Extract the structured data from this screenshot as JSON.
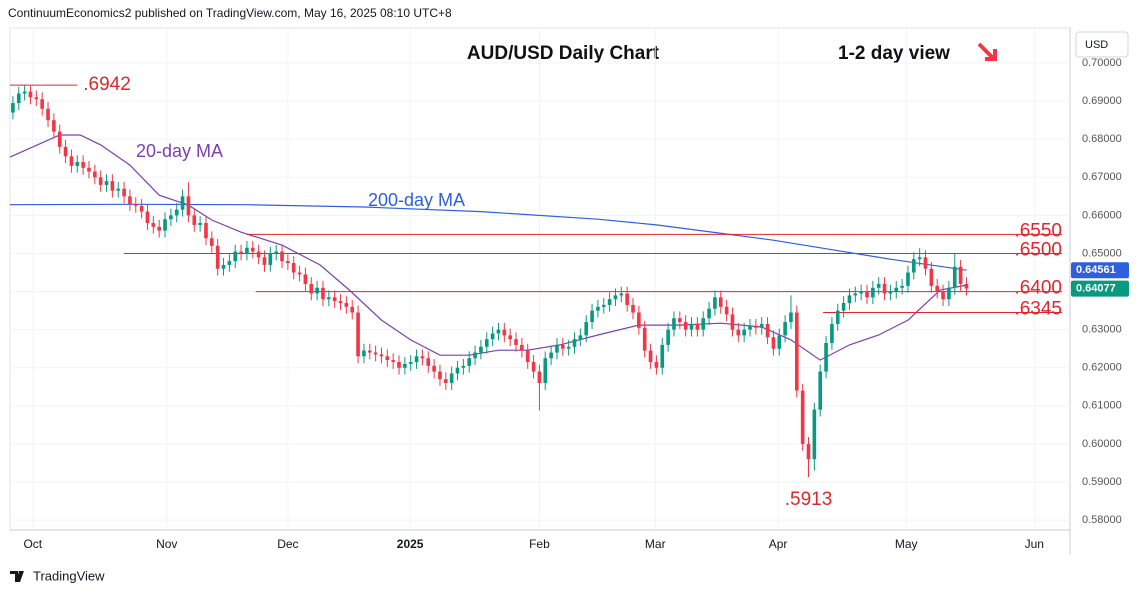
{
  "header": "ContinuumEconomics2 published on TradingView.com, May 16, 2025 08:10 UTC+8",
  "footer": "TradingView",
  "chart_data": {
    "type": "candlestick",
    "title": "AUD/USD Daily Chart",
    "subtitle": "1-2 day view",
    "currency": "USD",
    "up_color": "#089981",
    "down_color": "#f23645",
    "xlim": [
      -0.5,
      180.7
    ],
    "xticks": [
      {
        "value": 3.4,
        "label": "Oct"
      },
      {
        "value": 26.3,
        "label": "Nov"
      },
      {
        "value": 47,
        "label": "Dec"
      },
      {
        "value": 67.9,
        "label": "2025"
      },
      {
        "value": 90,
        "label": "Feb"
      },
      {
        "value": 109.8,
        "label": "Mar"
      },
      {
        "value": 130.8,
        "label": "Apr"
      },
      {
        "value": 152.7,
        "label": "May"
      },
      {
        "value": 174.6,
        "label": "Jun"
      }
    ],
    "ylim": [
      0.5774,
      0.7092
    ],
    "yticks": [
      {
        "value": 0.7,
        "label": "0.70000"
      },
      {
        "value": 0.69,
        "label": "0.69000"
      },
      {
        "value": 0.68,
        "label": "0.68000"
      },
      {
        "value": 0.67,
        "label": "0.67000"
      },
      {
        "value": 0.66,
        "label": "0.66000"
      },
      {
        "value": 0.65,
        "label": "0.65000"
      },
      {
        "value": 0.64,
        "label": "0.64000"
      },
      {
        "value": 0.63,
        "label": "0.63000"
      },
      {
        "value": 0.62,
        "label": "0.62000"
      },
      {
        "value": 0.61,
        "label": "0.61000"
      },
      {
        "value": 0.6,
        "label": "0.60000"
      },
      {
        "value": 0.59,
        "label": "0.59000"
      },
      {
        "value": 0.58,
        "label": "0.58000"
      }
    ],
    "open": [
      0.687,
      0.6895,
      0.692,
      0.6925,
      0.691,
      0.6905,
      0.688,
      0.685,
      0.682,
      0.678,
      0.6755,
      0.673,
      0.674,
      0.6725,
      0.6715,
      0.67,
      0.668,
      0.669,
      0.6665,
      0.667,
      0.665,
      0.663,
      0.6625,
      0.661,
      0.658,
      0.657,
      0.656,
      0.659,
      0.66,
      0.6615,
      0.665,
      0.66,
      0.6575,
      0.658,
      0.654,
      0.652,
      0.646,
      0.647,
      0.648,
      0.6505,
      0.65,
      0.6515,
      0.6505,
      0.649,
      0.647,
      0.65,
      0.6505,
      0.648,
      0.6475,
      0.645,
      0.6445,
      0.642,
      0.6395,
      0.641,
      0.638,
      0.6385,
      0.6375,
      0.637,
      0.636,
      0.6345,
      0.623,
      0.6245,
      0.624,
      0.6235,
      0.623,
      0.622,
      0.6215,
      0.62,
      0.621,
      0.6215,
      0.623,
      0.6225,
      0.6205,
      0.619,
      0.617,
      0.616,
      0.6185,
      0.62,
      0.6205,
      0.6225,
      0.624,
      0.6255,
      0.6275,
      0.629,
      0.63,
      0.6285,
      0.6275,
      0.626,
      0.6245,
      0.6215,
      0.619,
      0.616,
      0.6225,
      0.624,
      0.626,
      0.625,
      0.6255,
      0.6275,
      0.6285,
      0.632,
      0.635,
      0.636,
      0.6365,
      0.638,
      0.639,
      0.6395,
      0.6365,
      0.6345,
      0.6305,
      0.6245,
      0.6215,
      0.62,
      0.626,
      0.63,
      0.633,
      0.632,
      0.63,
      0.6315,
      0.63,
      0.633,
      0.6355,
      0.6385,
      0.636,
      0.634,
      0.63,
      0.6285,
      0.63,
      0.631,
      0.6305,
      0.6315,
      0.628,
      0.625,
      0.6285,
      0.632,
      0.6345,
      0.614,
      0.6,
      0.596,
      0.609,
      0.619,
      0.6265,
      0.6315,
      0.635,
      0.637,
      0.639,
      0.6395,
      0.64,
      0.6385,
      0.641,
      0.642,
      0.6395,
      0.64,
      0.641,
      0.6415,
      0.645,
      0.6485,
      0.649,
      0.646,
      0.6415,
      0.64,
      0.638,
      0.641,
      0.6465,
      0.642
    ],
    "high": [
      0.6913,
      0.6938,
      0.6942,
      0.694,
      0.6928,
      0.6923,
      0.6898,
      0.6868,
      0.6838,
      0.6798,
      0.6773,
      0.6758,
      0.6758,
      0.6743,
      0.6733,
      0.6718,
      0.6708,
      0.6708,
      0.6688,
      0.6688,
      0.6668,
      0.6648,
      0.6643,
      0.6628,
      0.6598,
      0.6588,
      0.6608,
      0.6618,
      0.6633,
      0.6668,
      0.6687,
      0.6618,
      0.6598,
      0.6598,
      0.6558,
      0.6538,
      0.6488,
      0.6498,
      0.6523,
      0.6523,
      0.6533,
      0.6533,
      0.6523,
      0.6508,
      0.6518,
      0.6523,
      0.6523,
      0.6498,
      0.6493,
      0.6468,
      0.6463,
      0.6438,
      0.6428,
      0.6428,
      0.6403,
      0.6403,
      0.6393,
      0.6388,
      0.6378,
      0.6363,
      0.6263,
      0.6263,
      0.6258,
      0.6253,
      0.6248,
      0.6238,
      0.6233,
      0.6228,
      0.6233,
      0.6248,
      0.6248,
      0.6243,
      0.6223,
      0.6208,
      0.6188,
      0.6203,
      0.6218,
      0.6223,
      0.6243,
      0.6258,
      0.6273,
      0.6293,
      0.6308,
      0.6318,
      0.6318,
      0.6303,
      0.6293,
      0.6278,
      0.6263,
      0.6233,
      0.6208,
      0.6243,
      0.6258,
      0.6278,
      0.6278,
      0.6273,
      0.6293,
      0.6303,
      0.6338,
      0.6368,
      0.6378,
      0.6383,
      0.6398,
      0.6408,
      0.6413,
      0.6413,
      0.6383,
      0.6363,
      0.6323,
      0.6263,
      0.6233,
      0.6278,
      0.6318,
      0.6348,
      0.6348,
      0.6338,
      0.6333,
      0.6333,
      0.6348,
      0.6373,
      0.6403,
      0.6403,
      0.6378,
      0.6358,
      0.6318,
      0.6318,
      0.6328,
      0.6328,
      0.6333,
      0.6333,
      0.6298,
      0.6303,
      0.6338,
      0.639,
      0.6363,
      0.6158,
      0.6018,
      0.6108,
      0.6208,
      0.6283,
      0.6333,
      0.6368,
      0.6388,
      0.6408,
      0.6413,
      0.6418,
      0.6418,
      0.6428,
      0.6438,
      0.6438,
      0.6418,
      0.6428,
      0.6433,
      0.6468,
      0.6503,
      0.6514,
      0.6508,
      0.6478,
      0.6433,
      0.6418,
      0.6428,
      0.65,
      0.6483,
      0.6438
    ],
    "low": [
      0.6852,
      0.6877,
      0.6902,
      0.6892,
      0.6887,
      0.6862,
      0.6832,
      0.6802,
      0.6762,
      0.6737,
      0.6712,
      0.6712,
      0.6707,
      0.6697,
      0.6682,
      0.6662,
      0.6662,
      0.6647,
      0.6647,
      0.6632,
      0.6612,
      0.6607,
      0.6592,
      0.6562,
      0.6552,
      0.6542,
      0.6542,
      0.6572,
      0.6582,
      0.6597,
      0.6582,
      0.6557,
      0.6557,
      0.6522,
      0.6502,
      0.6442,
      0.6442,
      0.6452,
      0.6462,
      0.6482,
      0.6482,
      0.6487,
      0.6472,
      0.6452,
      0.6452,
      0.6482,
      0.6462,
      0.6457,
      0.6432,
      0.6427,
      0.6402,
      0.6377,
      0.6377,
      0.6362,
      0.6362,
      0.6357,
      0.6352,
      0.6342,
      0.6327,
      0.6212,
      0.6212,
      0.6222,
      0.6217,
      0.6212,
      0.6202,
      0.6197,
      0.6182,
      0.6182,
      0.6192,
      0.6197,
      0.6207,
      0.6187,
      0.6172,
      0.6152,
      0.6142,
      0.6142,
      0.6167,
      0.6182,
      0.6187,
      0.6207,
      0.6222,
      0.6237,
      0.6257,
      0.6272,
      0.6267,
      0.6257,
      0.6242,
      0.6227,
      0.6197,
      0.6172,
      0.6088,
      0.6142,
      0.6207,
      0.6222,
      0.6232,
      0.6232,
      0.6237,
      0.6257,
      0.6267,
      0.6302,
      0.6332,
      0.6342,
      0.6347,
      0.6362,
      0.6372,
      0.6347,
      0.6327,
      0.6287,
      0.6227,
      0.6197,
      0.6182,
      0.6182,
      0.6242,
      0.6282,
      0.6302,
      0.6282,
      0.6282,
      0.6282,
      0.6282,
      0.6312,
      0.6337,
      0.6342,
      0.6322,
      0.6282,
      0.6267,
      0.6267,
      0.6282,
      0.6287,
      0.6287,
      0.6262,
      0.6232,
      0.6232,
      0.6267,
      0.6302,
      0.6122,
      0.5982,
      0.5913,
      0.593,
      0.6072,
      0.6172,
      0.6247,
      0.6297,
      0.6332,
      0.6352,
      0.6372,
      0.6377,
      0.6367,
      0.6367,
      0.6392,
      0.6377,
      0.6377,
      0.6382,
      0.6392,
      0.6397,
      0.6432,
      0.6467,
      0.6442,
      0.6397,
      0.6382,
      0.6362,
      0.6362,
      0.6392,
      0.6402,
      0.639
    ],
    "close": [
      0.6895,
      0.692,
      0.6925,
      0.691,
      0.6905,
      0.688,
      0.685,
      0.682,
      0.678,
      0.6755,
      0.673,
      0.674,
      0.6725,
      0.6715,
      0.67,
      0.668,
      0.669,
      0.6665,
      0.667,
      0.665,
      0.663,
      0.6625,
      0.661,
      0.658,
      0.657,
      0.656,
      0.659,
      0.66,
      0.6615,
      0.665,
      0.66,
      0.6575,
      0.658,
      0.654,
      0.652,
      0.646,
      0.647,
      0.648,
      0.6505,
      0.65,
      0.6515,
      0.6505,
      0.649,
      0.647,
      0.65,
      0.6505,
      0.648,
      0.6475,
      0.645,
      0.6445,
      0.642,
      0.6395,
      0.641,
      0.638,
      0.6385,
      0.6375,
      0.637,
      0.636,
      0.6345,
      0.623,
      0.6245,
      0.624,
      0.6235,
      0.623,
      0.622,
      0.6215,
      0.62,
      0.621,
      0.6215,
      0.623,
      0.6225,
      0.6205,
      0.619,
      0.617,
      0.616,
      0.6185,
      0.62,
      0.6205,
      0.6225,
      0.624,
      0.6255,
      0.6275,
      0.629,
      0.63,
      0.6285,
      0.6275,
      0.626,
      0.6245,
      0.6215,
      0.619,
      0.616,
      0.6225,
      0.624,
      0.626,
      0.625,
      0.6255,
      0.6275,
      0.6285,
      0.632,
      0.635,
      0.636,
      0.6365,
      0.638,
      0.639,
      0.6395,
      0.6365,
      0.6345,
      0.6305,
      0.6245,
      0.6215,
      0.62,
      0.626,
      0.63,
      0.633,
      0.632,
      0.63,
      0.6315,
      0.63,
      0.633,
      0.6355,
      0.6385,
      0.636,
      0.634,
      0.63,
      0.6285,
      0.63,
      0.631,
      0.6305,
      0.6315,
      0.628,
      0.625,
      0.6285,
      0.632,
      0.6345,
      0.614,
      0.6,
      0.596,
      0.609,
      0.619,
      0.6265,
      0.6315,
      0.635,
      0.637,
      0.639,
      0.6395,
      0.64,
      0.6385,
      0.641,
      0.642,
      0.6395,
      0.64,
      0.641,
      0.6415,
      0.645,
      0.6485,
      0.649,
      0.646,
      0.6415,
      0.64,
      0.638,
      0.641,
      0.6465,
      0.642,
      0.6408
    ],
    "series": [
      {
        "name": "20-day MA",
        "color": "#7b3fb3",
        "x": [
          -0.5,
          8,
          11.5,
          15,
          20,
          25,
          30,
          34,
          39,
          46,
          52.5,
          57.5,
          63,
          68,
          73,
          78,
          83,
          88,
          93.5,
          100,
          107,
          114,
          121,
          128,
          133,
          138,
          143,
          148,
          153,
          158.5,
          163
        ],
        "values": [
          0.6753,
          0.6811,
          0.6811,
          0.6785,
          0.6732,
          0.6653,
          0.6627,
          0.6588,
          0.6556,
          0.6522,
          0.647,
          0.6404,
          0.6325,
          0.6273,
          0.6233,
          0.6233,
          0.6246,
          0.6246,
          0.626,
          0.6286,
          0.6312,
          0.6312,
          0.6317,
          0.6307,
          0.6273,
          0.622,
          0.626,
          0.6286,
          0.6325,
          0.6404,
          0.6417
        ]
      },
      {
        "name": "200-day MA",
        "color": "#2f5fe0",
        "x": [
          -0.5,
          20,
          40,
          60,
          80,
          100,
          110,
          120,
          130,
          140,
          150,
          163
        ],
        "values": [
          0.6628,
          0.6629,
          0.6628,
          0.6622,
          0.661,
          0.659,
          0.6575,
          0.6555,
          0.6535,
          0.651,
          0.6485,
          0.6456
        ]
      }
    ],
    "levels": [
      {
        "value": 0.6942,
        "label": ".6942",
        "start": -0.5,
        "end": 11
      },
      {
        "value": 0.655,
        "label": ".6550",
        "start": 40
      },
      {
        "value": 0.65,
        "label": ".6500",
        "start": 19
      },
      {
        "value": 0.64,
        "label": ".6400",
        "start": 41.5
      },
      {
        "value": 0.6345,
        "label": ".6345",
        "start": 138.5
      },
      {
        "value": 0.5913,
        "label": ".5913",
        "at": 136
      }
    ],
    "level_color": "#e0262c",
    "price_labels": [
      {
        "value": 0.64561,
        "label": "0.64561",
        "color": "#2f5fe0"
      },
      {
        "value": 0.64077,
        "label": "0.64077",
        "color": "#089981"
      }
    ]
  }
}
